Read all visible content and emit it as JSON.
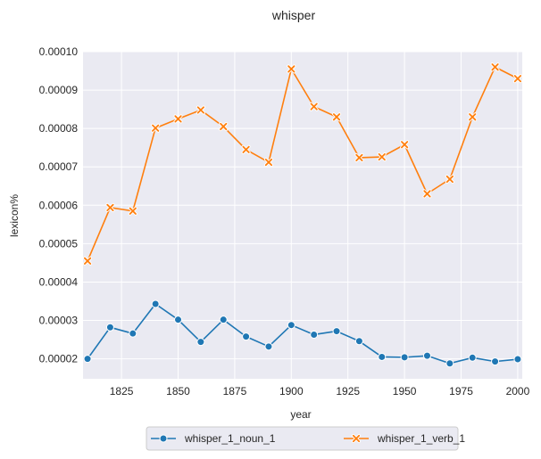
{
  "chart_data": {
    "type": "line",
    "title": "whisper",
    "xlabel": "year",
    "ylabel": "lexicon%",
    "xlim": [
      1808,
      2002
    ],
    "ylim": [
      1.48e-05,
      0.0001
    ],
    "x_ticks": [
      1825,
      1850,
      1875,
      1900,
      1925,
      1950,
      1975,
      2000
    ],
    "y_ticks": [
      2e-05,
      3e-05,
      4e-05,
      5e-05,
      6e-05,
      7e-05,
      8e-05,
      9e-05,
      0.0001
    ],
    "y_tick_labels": [
      "0.00002",
      "0.00003",
      "0.00004",
      "0.00005",
      "0.00006",
      "0.00007",
      "0.00008",
      "0.00009",
      "0.00010"
    ],
    "grid": true,
    "legend_position": "bottom-center",
    "x": [
      1810,
      1820,
      1830,
      1840,
      1850,
      1860,
      1870,
      1880,
      1890,
      1900,
      1910,
      1920,
      1930,
      1940,
      1950,
      1960,
      1970,
      1980,
      1990,
      2000
    ],
    "series": [
      {
        "name": "whisper_1_noun_1",
        "color": "#1f77b4",
        "marker": "circle",
        "values": [
          2e-05,
          2.82e-05,
          2.66e-05,
          3.43e-05,
          3.02e-05,
          2.44e-05,
          3.02e-05,
          2.58e-05,
          2.32e-05,
          2.88e-05,
          2.63e-05,
          2.72e-05,
          2.46e-05,
          2.05e-05,
          2.04e-05,
          2.08e-05,
          1.88e-05,
          2.03e-05,
          1.93e-05,
          1.99e-05
        ]
      },
      {
        "name": "whisper_1_verb_1",
        "color": "#ff7f0e",
        "marker": "x",
        "values": [
          4.55e-05,
          5.94e-05,
          5.85e-05,
          8.01e-05,
          8.25e-05,
          8.48e-05,
          8.05e-05,
          7.45e-05,
          7.12e-05,
          9.55e-05,
          8.57e-05,
          8.3e-05,
          7.24e-05,
          7.26e-05,
          7.58e-05,
          6.3e-05,
          6.68e-05,
          8.3e-05,
          9.6e-05,
          9.3e-05
        ]
      }
    ]
  }
}
